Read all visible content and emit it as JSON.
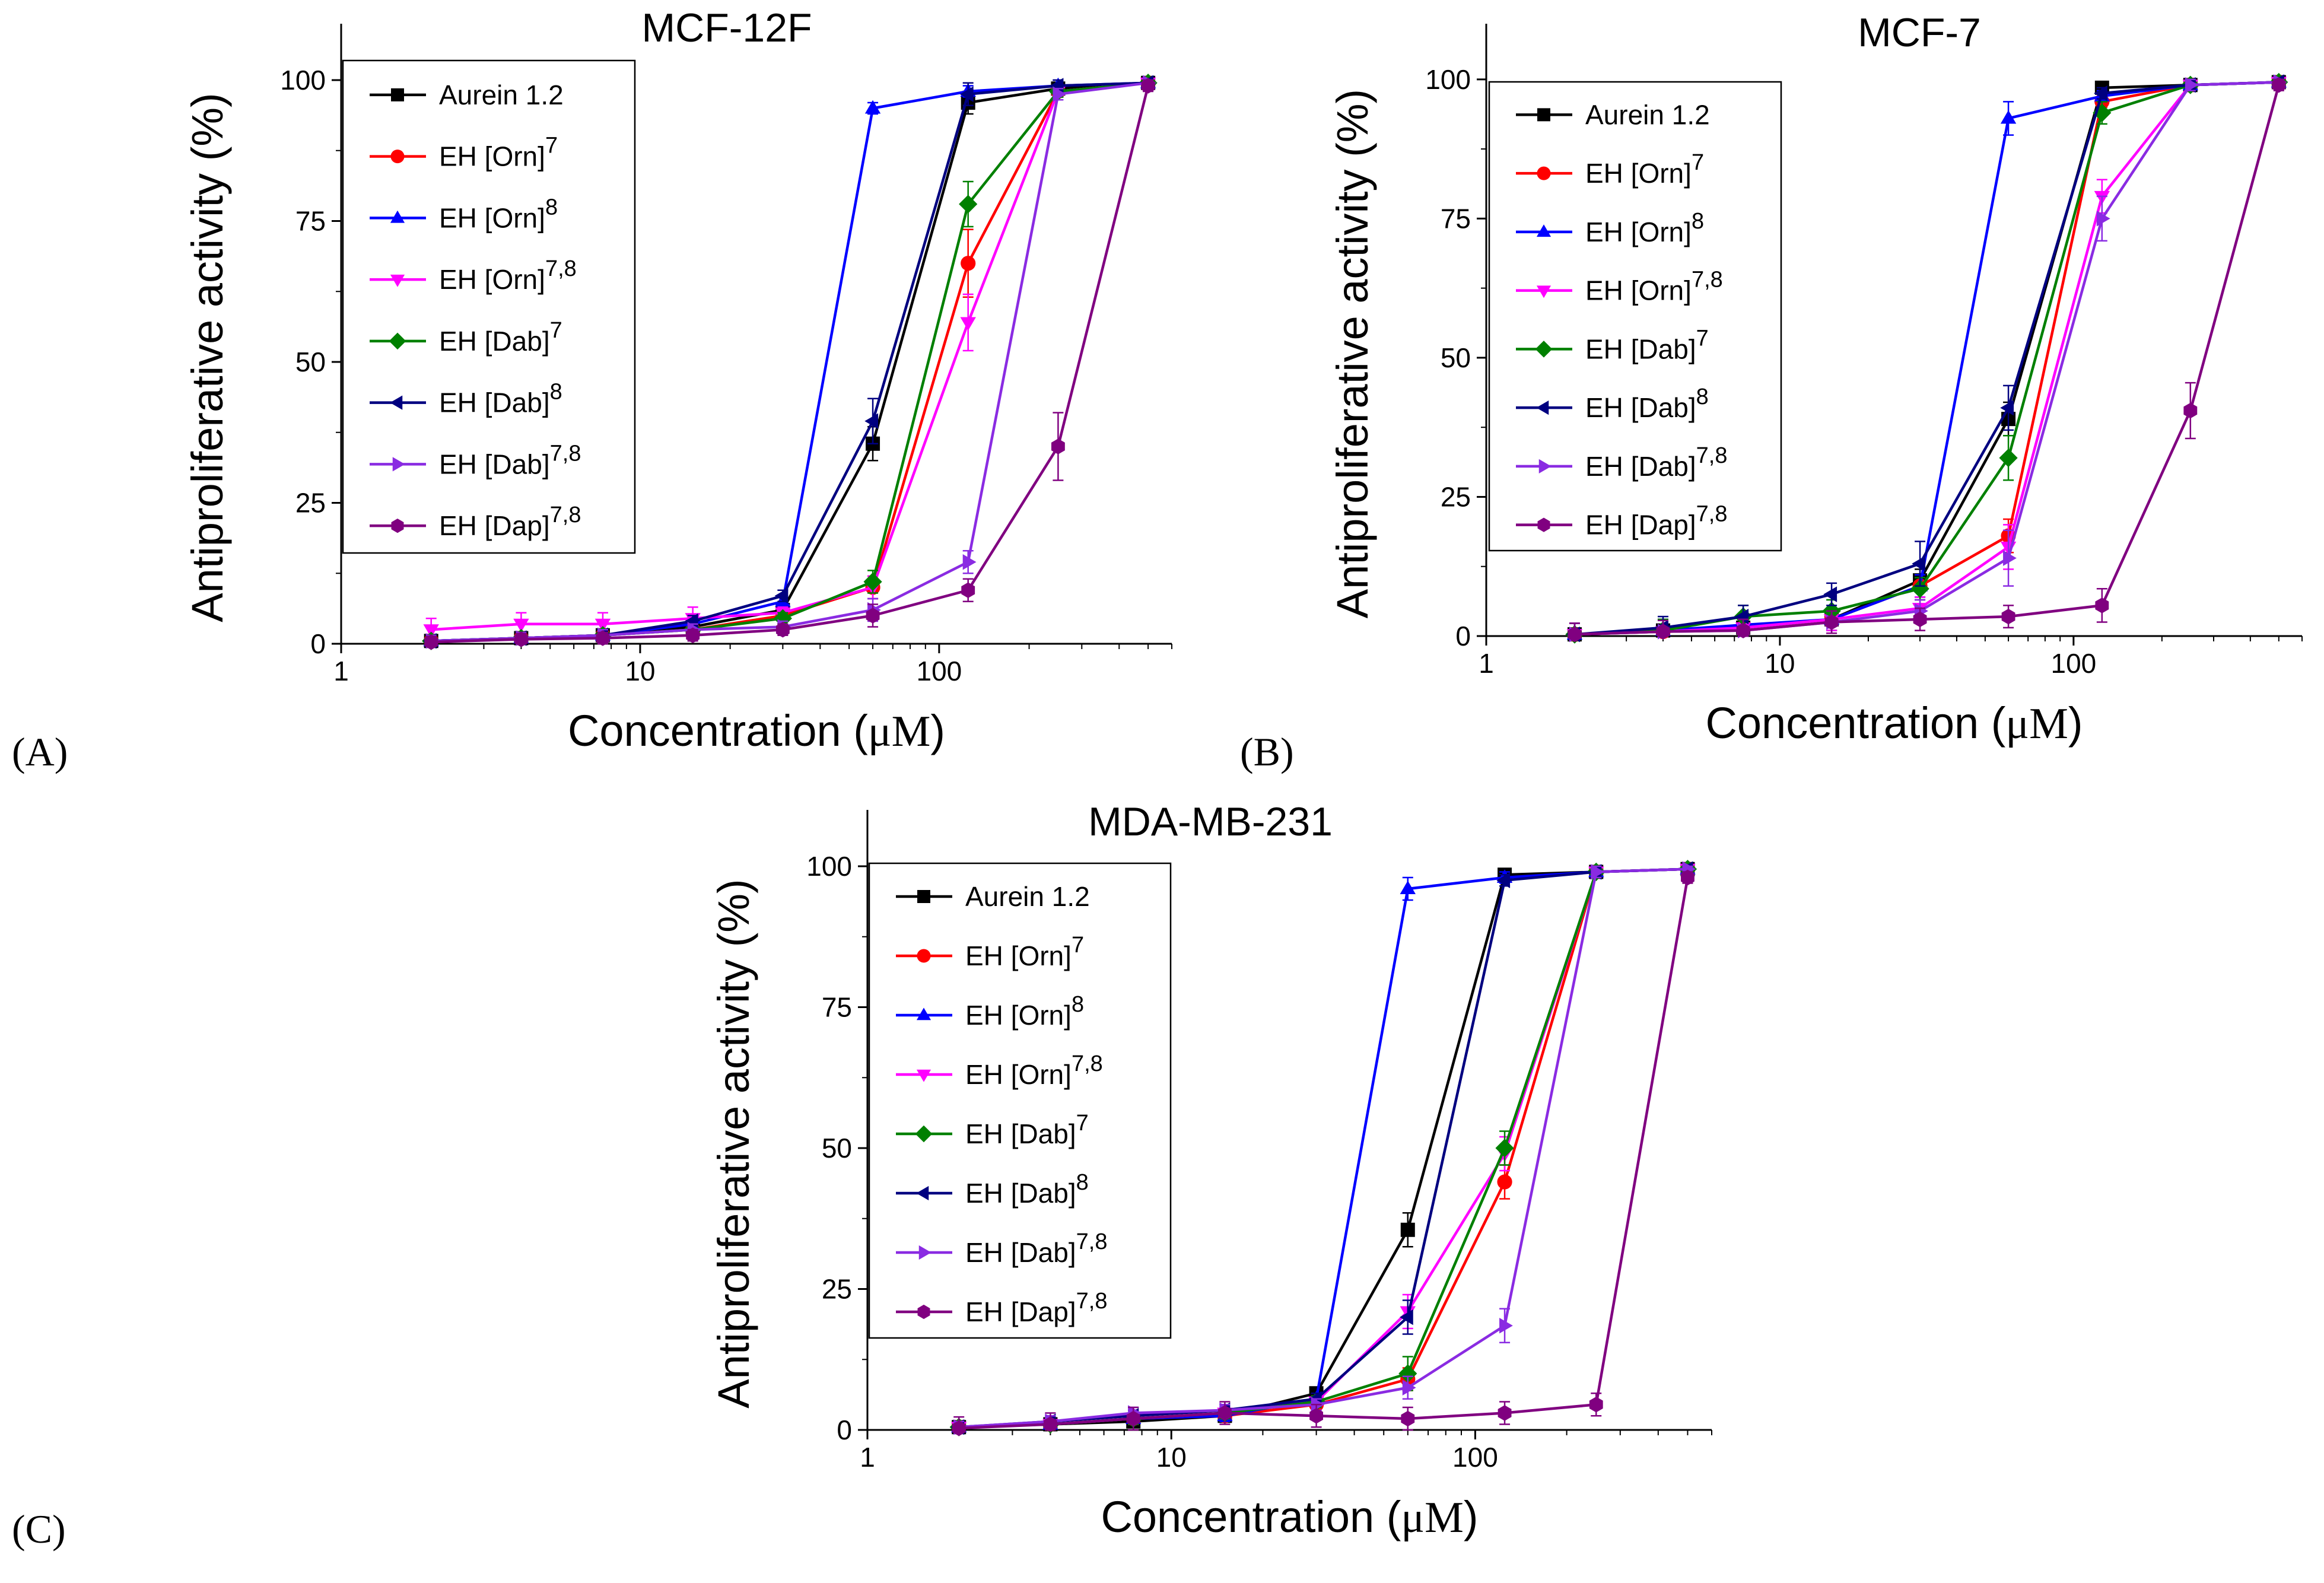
{
  "colors": {
    "Aurein 1.2": "#000000",
    "EH [Orn]7": "#ff0000",
    "EH [Orn]8": "#0000ff",
    "EH [Orn]7,8": "#ff00ff",
    "EH [Dab]7": "#008000",
    "EH [Dab]8": "#000080",
    "EH [Dab]7,8": "#8a2be2",
    "EH [Dap]7,8": "#800080"
  },
  "markers": {
    "Aurein 1.2": "square",
    "EH [Orn]7": "circle",
    "EH [Orn]8": "triangle-up",
    "EH [Orn]7,8": "triangle-down",
    "EH [Dab]7": "diamond",
    "EH [Dab]8": "triangle-left",
    "EH [Dab]7,8": "triangle-right",
    "EH [Dap]7,8": "hexagon"
  },
  "legend_entries": [
    {
      "key": "Aurein 1.2",
      "base": "Aurein 1.2",
      "sup": ""
    },
    {
      "key": "EH [Orn]7",
      "base": "EH [Orn]",
      "sup": "7"
    },
    {
      "key": "EH [Orn]8",
      "base": "EH [Orn]",
      "sup": "8"
    },
    {
      "key": "EH [Orn]7,8",
      "base": "EH [Orn]",
      "sup": "7,8"
    },
    {
      "key": "EH [Dab]7",
      "base": "EH [Dab]",
      "sup": "7"
    },
    {
      "key": "EH [Dab]8",
      "base": "EH [Dab]",
      "sup": "8"
    },
    {
      "key": "EH [Dab]7,8",
      "base": "EH [Dab]",
      "sup": "7,8"
    },
    {
      "key": "EH [Dap]7,8",
      "base": "EH [Dap]",
      "sup": "7,8"
    }
  ],
  "chart_data": [
    {
      "panel_label": "(A)",
      "type": "line",
      "title": "MCF-12F",
      "xlabel": "Concentration (μM)",
      "ylabel": "Antiproliferative activity (%)",
      "xscale": "log",
      "xlim": [
        1,
        600
      ],
      "ylim": [
        0,
        110
      ],
      "xticks": [
        "1",
        "10",
        "100"
      ],
      "yticks": [
        "0",
        "25",
        "50",
        "75",
        "100"
      ],
      "legend_position": "top-left",
      "x": [
        2,
        4,
        7.5,
        15,
        30,
        60,
        125,
        250,
        500
      ],
      "series": [
        {
          "name": "Aurein 1.2",
          "values": [
            0.5,
            1,
            1.5,
            3,
            6,
            35.5,
            96,
            98.5,
            99.5
          ],
          "err": [
            1,
            1,
            1,
            1,
            1,
            3,
            2,
            1,
            0.5
          ]
        },
        {
          "name": "EH [Orn]7",
          "values": [
            0.5,
            1,
            1.5,
            2.5,
            5,
            10,
            67.5,
            98,
            99.5
          ],
          "err": [
            1,
            1,
            1,
            1,
            1,
            2,
            6,
            1,
            0.5
          ]
        },
        {
          "name": "EH [Orn]8",
          "values": [
            0.5,
            1,
            1.5,
            3.5,
            7.5,
            95,
            98,
            99,
            99.5
          ],
          "err": [
            1,
            1,
            1,
            1,
            1,
            1,
            1,
            1,
            0.5
          ]
        },
        {
          "name": "EH [Orn]7,8",
          "values": [
            2.5,
            3.5,
            3.5,
            4.5,
            5.5,
            10,
            57,
            98,
            99.5
          ],
          "err": [
            2,
            2,
            2,
            2,
            1,
            2,
            5,
            1,
            0.5
          ]
        },
        {
          "name": "EH [Dab]7",
          "values": [
            0.5,
            1,
            1.5,
            2.5,
            4.5,
            11,
            78,
            98,
            99.5
          ],
          "err": [
            1,
            1,
            1,
            1,
            1,
            2,
            4,
            1,
            0.5
          ]
        },
        {
          "name": "EH [Dab]8",
          "values": [
            0.5,
            1,
            1.5,
            4,
            8.5,
            39.5,
            97.5,
            99,
            99.5
          ],
          "err": [
            1,
            1,
            1,
            1,
            1,
            4,
            2,
            1,
            0.5
          ]
        },
        {
          "name": "EH [Dab]7,8",
          "values": [
            0.5,
            1,
            1.5,
            2.5,
            3,
            6,
            14.5,
            97.5,
            99.5
          ],
          "err": [
            1,
            1,
            1,
            1,
            1,
            2,
            2,
            1,
            0.5
          ]
        },
        {
          "name": "EH [Dap]7,8",
          "values": [
            0.3,
            0.8,
            1,
            1.5,
            2.5,
            5,
            9.5,
            35,
            99
          ],
          "err": [
            1,
            1,
            1,
            1,
            1,
            2,
            2,
            6,
            1
          ]
        }
      ]
    },
    {
      "panel_label": "(B)",
      "type": "line",
      "title": "MCF-7",
      "xlabel": "Concentration (μM)",
      "ylabel": "Antiproliferative activity (%)",
      "xscale": "log",
      "xlim": [
        1,
        600
      ],
      "ylim": [
        0,
        110
      ],
      "xticks": [
        "1",
        "10",
        "100"
      ],
      "yticks": [
        "0",
        "25",
        "50",
        "75",
        "100"
      ],
      "legend_position": "top-left",
      "x": [
        2,
        4,
        7.5,
        15,
        30,
        60,
        125,
        250,
        500
      ],
      "series": [
        {
          "name": "Aurein 1.2",
          "values": [
            0.3,
            1,
            1.5,
            3,
            10,
            39,
            98.5,
            99,
            99.5
          ],
          "err": [
            2,
            2,
            2,
            2,
            2,
            3,
            1,
            1,
            0.5
          ]
        },
        {
          "name": "EH [Orn]7",
          "values": [
            0.3,
            0.8,
            1.5,
            3,
            9,
            18,
            96,
            99,
            99.5
          ],
          "err": [
            2,
            2,
            2,
            2,
            2,
            3,
            1,
            1,
            0.5
          ]
        },
        {
          "name": "EH [Orn]8",
          "values": [
            0.3,
            1,
            2,
            3,
            9,
            93,
            97,
            99,
            99.5
          ],
          "err": [
            2,
            2,
            2,
            2,
            2,
            3,
            1,
            1,
            0.5
          ]
        },
        {
          "name": "EH [Orn]7,8",
          "values": [
            0.3,
            0.8,
            1.5,
            3,
            5,
            16,
            79,
            99,
            99.5
          ],
          "err": [
            2,
            2,
            2,
            2,
            2,
            4,
            3,
            1,
            0.5
          ]
        },
        {
          "name": "EH [Dab]7",
          "values": [
            0.3,
            1,
            3.5,
            4.5,
            8.5,
            32,
            94,
            99,
            99.5
          ],
          "err": [
            2,
            2,
            2,
            2,
            2,
            4,
            2,
            1,
            0.5
          ]
        },
        {
          "name": "EH [Dab]8",
          "values": [
            0.3,
            1.5,
            3.5,
            7.5,
            13,
            41,
            97.5,
            99,
            99.5
          ],
          "err": [
            2,
            2,
            2,
            2,
            4,
            4,
            1,
            1,
            0.5
          ]
        },
        {
          "name": "EH [Dab]7,8",
          "values": [
            0.3,
            0.8,
            1,
            2.5,
            4.5,
            14,
            75,
            99,
            99.5
          ],
          "err": [
            2,
            2,
            2,
            2,
            2,
            5,
            4,
            1,
            0.5
          ]
        },
        {
          "name": "EH [Dap]7,8",
          "values": [
            0.3,
            0.8,
            1,
            2.5,
            3,
            3.5,
            5.5,
            40.5,
            99
          ],
          "err": [
            2,
            2,
            2,
            2,
            2,
            2,
            3,
            5,
            1
          ]
        }
      ]
    },
    {
      "panel_label": "(C)",
      "type": "line",
      "title": "MDA-MB-231",
      "xlabel": "Concentration (μM)",
      "ylabel": "Antiproliferative activity (%)",
      "xscale": "log",
      "xlim": [
        1,
        600
      ],
      "ylim": [
        0,
        110
      ],
      "xticks": [
        "1",
        "10",
        "100"
      ],
      "yticks": [
        "0",
        "25",
        "50",
        "75",
        "100"
      ],
      "legend_position": "top-left",
      "x": [
        2,
        4,
        7.5,
        15,
        30,
        60,
        125,
        250,
        500
      ],
      "series": [
        {
          "name": "Aurein 1.2",
          "values": [
            0.5,
            1,
            1.5,
            2.5,
            6.5,
            35.5,
            98.5,
            99,
            99.5
          ],
          "err": [
            1,
            1,
            1,
            1,
            1,
            3,
            1,
            1,
            0.5
          ]
        },
        {
          "name": "EH [Orn]7",
          "values": [
            0.5,
            1,
            2,
            2.5,
            4.5,
            9,
            44,
            99,
            99.5
          ],
          "err": [
            1,
            1,
            1,
            1,
            1,
            2,
            3,
            1,
            0.5
          ]
        },
        {
          "name": "EH [Orn]8",
          "values": [
            0.5,
            1,
            2,
            2.5,
            5.5,
            96,
            98,
            99,
            99.5
          ],
          "err": [
            1,
            1,
            1,
            1,
            1,
            2,
            1,
            1,
            0.5
          ]
        },
        {
          "name": "EH [Orn]7,8",
          "values": [
            0.5,
            1,
            2,
            3,
            5,
            21,
            49,
            99,
            99.5
          ],
          "err": [
            1,
            1,
            1,
            1,
            1,
            3,
            3,
            1,
            0.5
          ]
        },
        {
          "name": "EH [Dab]7",
          "values": [
            0.5,
            1,
            2,
            3,
            5,
            10,
            50,
            99,
            99.5
          ],
          "err": [
            1,
            1,
            1,
            1,
            1,
            3,
            3,
            1,
            0.5
          ]
        },
        {
          "name": "EH [Dab]8",
          "values": [
            0.5,
            1.5,
            2.5,
            3.5,
            5.5,
            20,
            97.5,
            99,
            99.5
          ],
          "err": [
            1,
            1,
            1,
            1,
            1,
            3,
            1,
            1,
            0.5
          ]
        },
        {
          "name": "EH [Dab]7,8",
          "values": [
            0.5,
            1.5,
            3,
            3.5,
            4.5,
            7.5,
            18.5,
            99,
            99.5
          ],
          "err": [
            1,
            1,
            1,
            1,
            1,
            2,
            3,
            1,
            0.5
          ]
        },
        {
          "name": "EH [Dap]7,8",
          "values": [
            0.3,
            1,
            2,
            3,
            2.5,
            2,
            3,
            4.5,
            98
          ],
          "err": [
            2,
            2,
            2,
            2,
            2,
            2,
            2,
            2,
            1
          ]
        }
      ]
    }
  ]
}
